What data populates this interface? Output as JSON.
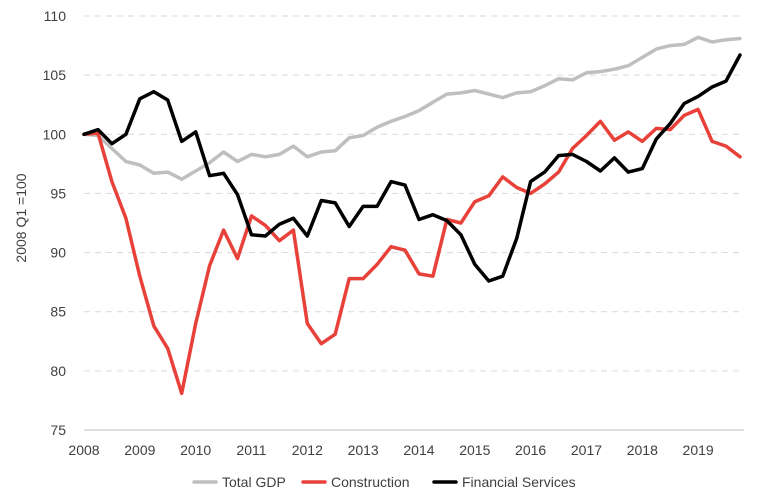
{
  "chart_data": {
    "type": "line",
    "title": "",
    "xlabel": "",
    "ylabel": "2008 Q1 =100",
    "ylim": [
      75,
      110
    ],
    "yticks": [
      75,
      80,
      85,
      90,
      95,
      100,
      105,
      110
    ],
    "xticks": [
      2008,
      2009,
      2010,
      2011,
      2012,
      2013,
      2014,
      2015,
      2016,
      2017,
      2018,
      2019
    ],
    "xlim": [
      2008,
      2019.75
    ],
    "grid": "horizontal dashed",
    "legend": "bottom",
    "x": [
      2008,
      2008.25,
      2008.5,
      2008.75,
      2009,
      2009.25,
      2009.5,
      2009.75,
      2010,
      2010.25,
      2010.5,
      2010.75,
      2011,
      2011.25,
      2011.5,
      2011.75,
      2012,
      2012.25,
      2012.5,
      2012.75,
      2013,
      2013.25,
      2013.5,
      2013.75,
      2014,
      2014.25,
      2014.5,
      2014.75,
      2015,
      2015.25,
      2015.5,
      2015.75,
      2016,
      2016.25,
      2016.5,
      2016.75,
      2017,
      2017.25,
      2017.5,
      2017.75,
      2018,
      2018.25,
      2018.5,
      2018.75,
      2019,
      2019.25,
      2019.5,
      2019.75
    ],
    "series": [
      {
        "name": "Total GDP",
        "color": "#bfbfbf",
        "values": [
          100,
          99.9,
          98.8,
          97.7,
          97.4,
          96.7,
          96.8,
          96.2,
          96.9,
          97.6,
          98.5,
          97.7,
          98.3,
          98.1,
          98.3,
          99.0,
          98.1,
          98.5,
          98.6,
          99.7,
          99.9,
          100.6,
          101.1,
          101.5,
          102.0,
          102.7,
          103.4,
          103.5,
          103.7,
          103.4,
          103.1,
          103.5,
          103.6,
          104.1,
          104.7,
          104.6,
          105.2,
          105.3,
          105.5,
          105.8,
          106.5,
          107.2,
          107.5,
          107.6,
          108.2,
          107.8,
          108.0,
          108.1
        ]
      },
      {
        "name": "Construction",
        "color": "#e8413a",
        "values": [
          100,
          100.1,
          96.0,
          92.9,
          88.0,
          83.8,
          81.9,
          78.1,
          84.0,
          88.9,
          91.9,
          89.5,
          93.1,
          92.3,
          91.0,
          91.9,
          84.0,
          82.3,
          83.1,
          87.8,
          87.8,
          89.0,
          90.5,
          90.2,
          88.2,
          88.0,
          92.8,
          92.5,
          94.3,
          94.8,
          96.4,
          95.5,
          95.0,
          95.8,
          96.8,
          98.8,
          99.9,
          101.1,
          99.5,
          100.2,
          99.4,
          100.5,
          100.4,
          101.6,
          102.1,
          99.4,
          99.0,
          98.1
        ]
      },
      {
        "name": "Financial Services",
        "color": "#000000",
        "values": [
          100,
          100.4,
          99.2,
          100.0,
          103.0,
          103.6,
          102.9,
          99.4,
          100.2,
          96.5,
          96.7,
          94.9,
          91.5,
          91.4,
          92.4,
          92.9,
          91.4,
          94.4,
          94.2,
          92.2,
          93.9,
          93.9,
          96.0,
          95.7,
          92.8,
          93.2,
          92.7,
          91.5,
          89.0,
          87.6,
          88.0,
          91.2,
          96.0,
          96.8,
          98.2,
          98.3,
          97.7,
          96.9,
          98.0,
          96.8,
          97.1,
          99.6,
          100.9,
          102.6,
          103.2,
          104.0,
          104.5,
          106.7
        ]
      }
    ]
  }
}
